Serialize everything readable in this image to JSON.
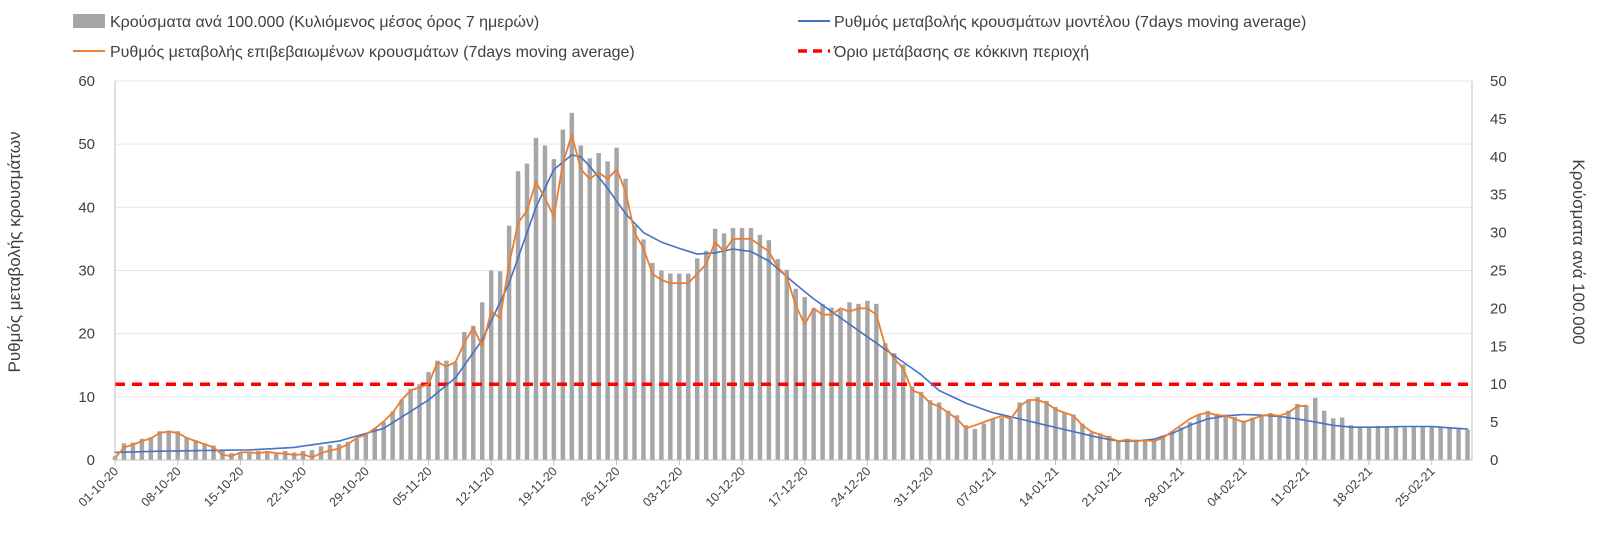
{
  "chart_data": {
    "type": "bar+line",
    "legend": {
      "bars_label": "Κρούσματα ανά 100.000 (Κυλιόμενος μέσος όρος 7 ημερών)",
      "model_label": "Ρυθμός μεταβολής κρουσμάτων μοντέλου (7days moving average)",
      "confirmed_label": "Ρυθμός μεταβολής επιβεβαιωμένων κρουσμάτων (7days moving average)",
      "threshold_label": "Όριο μετάβασης σε κόκκινη περιοχή",
      "placement": "top"
    },
    "y_left": {
      "title": "Ρυθμός μεταβολής κρουσμάτων",
      "min": 0,
      "max": 60,
      "step": 10,
      "ticks": [
        "0",
        "10",
        "20",
        "30",
        "40",
        "50",
        "60"
      ]
    },
    "y_right": {
      "title": "Κρούσματα ανά 100.000",
      "min": 0,
      "max": 50,
      "step": 5,
      "ticks": [
        "0",
        "5",
        "10",
        "15",
        "20",
        "25",
        "30",
        "35",
        "40",
        "45",
        "50"
      ]
    },
    "x_ticks": [
      "01-10-20",
      "08-10-20",
      "15-10-20",
      "22-10-20",
      "29-10-20",
      "05-11-20",
      "12-11-20",
      "19-11-20",
      "26-11-20",
      "03-12-20",
      "10-12-20",
      "17-12-20",
      "24-12-20",
      "31-12-20",
      "07-01-21",
      "14-01-21",
      "21-01-21",
      "28-01-21",
      "04-02-21",
      "11-02-21",
      "18-02-21",
      "25-02-21"
    ],
    "days": 152,
    "threshold_left_axis": 12,
    "colors": {
      "bars": "#a6a6a6",
      "model": "#4472c4",
      "confirmed": "#ed7d31",
      "threshold": "#ff0000"
    },
    "bars_right_axis_keypoints": [
      [
        0,
        0.5
      ],
      [
        1,
        2.2
      ],
      [
        2,
        2.3
      ],
      [
        3,
        2.8
      ],
      [
        4,
        3.0
      ],
      [
        5,
        3.8
      ],
      [
        6,
        3.9
      ],
      [
        7,
        3.8
      ],
      [
        8,
        3.0
      ],
      [
        9,
        2.6
      ],
      [
        10,
        2.2
      ],
      [
        11,
        1.9
      ],
      [
        12,
        1.3
      ],
      [
        13,
        0.9
      ],
      [
        14,
        1.0
      ],
      [
        15,
        1.1
      ],
      [
        16,
        1.2
      ],
      [
        17,
        1.1
      ],
      [
        18,
        1.0
      ],
      [
        19,
        1.2
      ],
      [
        20,
        1.0
      ],
      [
        21,
        1.2
      ],
      [
        22,
        1.3
      ],
      [
        23,
        1.8
      ],
      [
        24,
        2.0
      ],
      [
        25,
        2.1
      ],
      [
        26,
        2.4
      ],
      [
        27,
        2.8
      ],
      [
        28,
        3.4
      ],
      [
        29,
        4.2
      ],
      [
        30,
        5.0
      ],
      [
        31,
        6.4
      ],
      [
        32,
        8.0
      ],
      [
        33,
        9.4
      ],
      [
        34,
        10.0
      ],
      [
        35,
        11.6
      ],
      [
        36,
        13.1
      ],
      [
        37,
        13.1
      ],
      [
        38,
        12.9
      ],
      [
        39,
        16.9
      ],
      [
        40,
        17.7
      ],
      [
        41,
        20.8
      ],
      [
        42,
        25.0
      ],
      [
        43,
        24.9
      ],
      [
        44,
        30.9
      ],
      [
        45,
        38.1
      ],
      [
        46,
        39.1
      ],
      [
        47,
        42.5
      ],
      [
        48,
        41.5
      ],
      [
        49,
        39.7
      ],
      [
        50,
        43.6
      ],
      [
        51,
        45.8
      ],
      [
        52,
        41.5
      ],
      [
        53,
        39.8
      ],
      [
        54,
        40.5
      ],
      [
        55,
        39.4
      ],
      [
        56,
        41.2
      ],
      [
        57,
        37.1
      ],
      [
        58,
        30.9
      ],
      [
        59,
        29.1
      ],
      [
        60,
        26.0
      ],
      [
        61,
        25.0
      ],
      [
        62,
        24.6
      ],
      [
        63,
        24.6
      ],
      [
        64,
        24.6
      ],
      [
        65,
        26.6
      ],
      [
        66,
        27.6
      ],
      [
        67,
        30.5
      ],
      [
        68,
        29.9
      ],
      [
        69,
        30.6
      ],
      [
        70,
        30.6
      ],
      [
        71,
        30.6
      ],
      [
        72,
        29.7
      ],
      [
        73,
        29.0
      ],
      [
        74,
        26.5
      ],
      [
        75,
        25.1
      ],
      [
        76,
        22.6
      ],
      [
        77,
        21.5
      ],
      [
        78,
        20.0
      ],
      [
        79,
        20.6
      ],
      [
        80,
        20.1
      ],
      [
        81,
        19.8
      ],
      [
        82,
        20.8
      ],
      [
        83,
        20.6
      ],
      [
        84,
        21.0
      ],
      [
        85,
        20.6
      ],
      [
        86,
        15.4
      ],
      [
        87,
        14.1
      ],
      [
        88,
        12.6
      ],
      [
        89,
        9.7
      ],
      [
        90,
        9.0
      ],
      [
        91,
        7.9
      ],
      [
        92,
        7.6
      ],
      [
        93,
        6.5
      ],
      [
        94,
        5.9
      ],
      [
        95,
        4.6
      ],
      [
        96,
        4.1
      ],
      [
        97,
        4.8
      ],
      [
        98,
        5.4
      ],
      [
        99,
        5.6
      ],
      [
        100,
        5.4
      ],
      [
        101,
        7.6
      ],
      [
        102,
        8.0
      ],
      [
        103,
        8.3
      ],
      [
        104,
        7.8
      ],
      [
        105,
        7.0
      ],
      [
        106,
        6.3
      ],
      [
        107,
        6.0
      ],
      [
        108,
        4.8
      ],
      [
        109,
        3.6
      ],
      [
        110,
        3.5
      ],
      [
        111,
        3.2
      ],
      [
        112,
        2.6
      ],
      [
        113,
        2.8
      ],
      [
        114,
        2.7
      ],
      [
        115,
        2.6
      ],
      [
        116,
        2.5
      ],
      [
        117,
        3.2
      ],
      [
        118,
        3.5
      ],
      [
        119,
        4.3
      ],
      [
        120,
        5.0
      ],
      [
        121,
        6.0
      ],
      [
        122,
        6.5
      ],
      [
        123,
        6.1
      ],
      [
        124,
        6.0
      ],
      [
        125,
        5.7
      ],
      [
        126,
        5.2
      ],
      [
        127,
        5.6
      ],
      [
        128,
        6.0
      ],
      [
        129,
        6.2
      ],
      [
        130,
        5.9
      ],
      [
        131,
        6.5
      ],
      [
        132,
        7.4
      ],
      [
        133,
        7.2
      ],
      [
        134,
        8.2
      ],
      [
        135,
        6.5
      ],
      [
        136,
        5.5
      ],
      [
        137,
        5.6
      ],
      [
        138,
        4.6
      ],
      [
        139,
        4.4
      ],
      [
        140,
        4.4
      ],
      [
        141,
        4.5
      ],
      [
        142,
        4.4
      ],
      [
        143,
        4.4
      ],
      [
        144,
        4.3
      ],
      [
        145,
        4.4
      ],
      [
        146,
        4.5
      ],
      [
        147,
        4.4
      ],
      [
        148,
        4.3
      ],
      [
        149,
        4.2
      ],
      [
        150,
        4.1
      ],
      [
        151,
        4.0
      ]
    ],
    "model_left_axis_keypoints": [
      [
        0,
        1.2
      ],
      [
        5,
        1.4
      ],
      [
        10,
        1.5
      ],
      [
        15,
        1.6
      ],
      [
        20,
        2.0
      ],
      [
        25,
        3.0
      ],
      [
        30,
        5.0
      ],
      [
        35,
        9.5
      ],
      [
        38,
        13.0
      ],
      [
        41,
        19.0
      ],
      [
        44,
        28.0
      ],
      [
        47,
        40.0
      ],
      [
        49,
        46.0
      ],
      [
        51,
        48.3
      ],
      [
        52,
        48.0
      ],
      [
        53,
        46.5
      ],
      [
        55,
        43.0
      ],
      [
        57,
        39.0
      ],
      [
        59,
        36.0
      ],
      [
        61,
        34.5
      ],
      [
        63,
        33.5
      ],
      [
        65,
        32.6
      ],
      [
        67,
        32.8
      ],
      [
        69,
        33.4
      ],
      [
        71,
        33.0
      ],
      [
        73,
        31.5
      ],
      [
        75,
        29.0
      ],
      [
        78,
        25.5
      ],
      [
        81,
        22.5
      ],
      [
        84,
        19.5
      ],
      [
        87,
        16.5
      ],
      [
        90,
        13.5
      ],
      [
        92,
        11.0
      ],
      [
        95,
        9.0
      ],
      [
        98,
        7.5
      ],
      [
        101,
        6.5
      ],
      [
        104,
        5.5
      ],
      [
        107,
        4.5
      ],
      [
        110,
        3.5
      ],
      [
        112,
        3.0
      ],
      [
        114,
        3.0
      ],
      [
        116,
        3.3
      ],
      [
        118,
        4.2
      ],
      [
        120,
        5.5
      ],
      [
        122,
        6.5
      ],
      [
        124,
        7.0
      ],
      [
        126,
        7.2
      ],
      [
        128,
        7.1
      ],
      [
        130,
        6.9
      ],
      [
        132,
        6.5
      ],
      [
        134,
        6.0
      ],
      [
        136,
        5.5
      ],
      [
        138,
        5.2
      ],
      [
        141,
        5.2
      ],
      [
        144,
        5.3
      ],
      [
        147,
        5.3
      ],
      [
        150,
        5.0
      ],
      [
        151,
        4.9
      ]
    ],
    "confirmed_left_axis_keypoints": [
      [
        0,
        0.3
      ],
      [
        1,
        2.0
      ],
      [
        2,
        2.4
      ],
      [
        3,
        3.0
      ],
      [
        4,
        3.4
      ],
      [
        5,
        4.3
      ],
      [
        6,
        4.5
      ],
      [
        7,
        4.3
      ],
      [
        8,
        3.5
      ],
      [
        9,
        3.0
      ],
      [
        10,
        2.5
      ],
      [
        11,
        2.0
      ],
      [
        12,
        0.8
      ],
      [
        13,
        0.6
      ],
      [
        14,
        1.2
      ],
      [
        15,
        1.2
      ],
      [
        16,
        1.1
      ],
      [
        17,
        1.3
      ],
      [
        18,
        1.1
      ],
      [
        19,
        1.0
      ],
      [
        20,
        0.8
      ],
      [
        21,
        0.9
      ],
      [
        22,
        0.4
      ],
      [
        23,
        1.1
      ],
      [
        24,
        1.5
      ],
      [
        25,
        1.8
      ],
      [
        26,
        2.5
      ],
      [
        27,
        3.5
      ],
      [
        28,
        4.0
      ],
      [
        29,
        5.0
      ],
      [
        30,
        6.1
      ],
      [
        31,
        7.5
      ],
      [
        32,
        9.5
      ],
      [
        33,
        11.0
      ],
      [
        34,
        11.5
      ],
      [
        35,
        12.0
      ],
      [
        36,
        15.5
      ],
      [
        37,
        14.8
      ],
      [
        38,
        15.5
      ],
      [
        39,
        18.5
      ],
      [
        40,
        21.0
      ],
      [
        41,
        18.0
      ],
      [
        42,
        23.5
      ],
      [
        43,
        22.5
      ],
      [
        44,
        31.0
      ],
      [
        45,
        37.5
      ],
      [
        46,
        39.5
      ],
      [
        47,
        44.0
      ],
      [
        48,
        41.5
      ],
      [
        49,
        38.5
      ],
      [
        50,
        47.0
      ],
      [
        51,
        51.5
      ],
      [
        52,
        46.0
      ],
      [
        53,
        44.5
      ],
      [
        54,
        45.5
      ],
      [
        55,
        44.5
      ],
      [
        56,
        46.0
      ],
      [
        57,
        42.5
      ],
      [
        58,
        36.0
      ],
      [
        59,
        33.5
      ],
      [
        60,
        29.5
      ],
      [
        61,
        28.5
      ],
      [
        62,
        28.0
      ],
      [
        63,
        28.0
      ],
      [
        64,
        28.0
      ],
      [
        65,
        29.5
      ],
      [
        66,
        31.0
      ],
      [
        67,
        34.5
      ],
      [
        68,
        33.0
      ],
      [
        69,
        35.0
      ],
      [
        70,
        35.0
      ],
      [
        71,
        35.0
      ],
      [
        72,
        34.0
      ],
      [
        73,
        33.0
      ],
      [
        74,
        30.5
      ],
      [
        75,
        29.0
      ],
      [
        76,
        24.5
      ],
      [
        77,
        21.5
      ],
      [
        78,
        24.0
      ],
      [
        79,
        23.0
      ],
      [
        80,
        23.0
      ],
      [
        81,
        24.0
      ],
      [
        82,
        23.5
      ],
      [
        83,
        24.0
      ],
      [
        84,
        24.0
      ],
      [
        85,
        23.0
      ],
      [
        86,
        18.0
      ],
      [
        87,
        16.0
      ],
      [
        88,
        14.5
      ],
      [
        89,
        11.0
      ],
      [
        90,
        10.5
      ],
      [
        91,
        9.0
      ],
      [
        92,
        8.5
      ],
      [
        93,
        7.5
      ],
      [
        94,
        6.5
      ],
      [
        95,
        5.0
      ],
      [
        96,
        5.5
      ],
      [
        97,
        6.0
      ],
      [
        98,
        6.5
      ],
      [
        99,
        7.0
      ],
      [
        100,
        6.5
      ],
      [
        101,
        8.5
      ],
      [
        102,
        9.5
      ],
      [
        103,
        9.5
      ],
      [
        104,
        9.0
      ],
      [
        105,
        8.0
      ],
      [
        106,
        7.5
      ],
      [
        107,
        7.0
      ],
      [
        108,
        5.5
      ],
      [
        109,
        4.5
      ],
      [
        110,
        4.0
      ],
      [
        111,
        3.5
      ],
      [
        112,
        3.0
      ],
      [
        113,
        3.2
      ],
      [
        114,
        3.0
      ],
      [
        115,
        3.1
      ],
      [
        116,
        3.0
      ],
      [
        117,
        3.5
      ],
      [
        118,
        4.5
      ],
      [
        119,
        5.5
      ],
      [
        120,
        6.5
      ],
      [
        121,
        7.2
      ],
      [
        122,
        7.5
      ],
      [
        123,
        7.1
      ],
      [
        124,
        7.0
      ],
      [
        125,
        6.5
      ],
      [
        126,
        6.0
      ],
      [
        127,
        6.5
      ],
      [
        128,
        7.0
      ],
      [
        129,
        7.2
      ],
      [
        130,
        7.0
      ],
      [
        131,
        7.5
      ],
      [
        132,
        8.5
      ],
      [
        133,
        8.6
      ]
    ]
  }
}
